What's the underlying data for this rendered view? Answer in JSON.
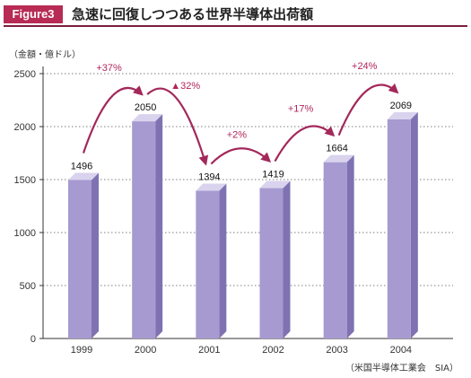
{
  "figure": {
    "badge": "Figure3",
    "title": "急速に回復しつつある世界半導体出荷額",
    "unit_label": "（金額・億ドル）",
    "source": "（米国半導体工業会　SIA）"
  },
  "colors": {
    "accent": "#b72b54",
    "bar_front": "#a79ad0",
    "bar_side": "#7f72b2",
    "bar_top": "#d9d3ee",
    "arrow": "#a3285a"
  },
  "chart_data": {
    "type": "bar",
    "categories": [
      "1999",
      "2000",
      "2001",
      "2002",
      "2003",
      "2004"
    ],
    "values": [
      1496,
      2050,
      1394,
      1419,
      1664,
      2069
    ],
    "value_labels": [
      "1496",
      "2050",
      "1394",
      "1419",
      "1664",
      "2069"
    ],
    "yticks": [
      0,
      500,
      1000,
      1500,
      2000,
      2500
    ],
    "ylim": [
      0,
      2500
    ],
    "grid": true,
    "changes": [
      {
        "from": 0,
        "to": 1,
        "label": "+37%"
      },
      {
        "from": 1,
        "to": 2,
        "label": "▲32%"
      },
      {
        "from": 2,
        "to": 3,
        "label": "+2%"
      },
      {
        "from": 3,
        "to": 4,
        "label": "+17%"
      },
      {
        "from": 4,
        "to": 5,
        "label": "+24%"
      }
    ]
  }
}
